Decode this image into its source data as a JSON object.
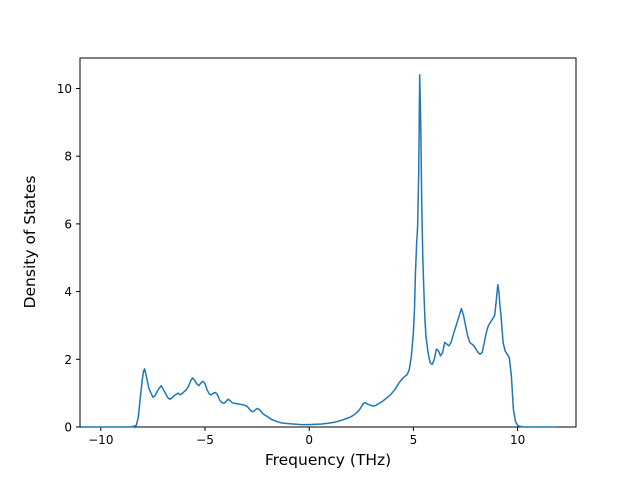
{
  "figure": {
    "background": "#ffffff"
  },
  "chart_data": {
    "type": "line",
    "title": "",
    "xlabel": "Frequency (THz)",
    "ylabel": "Density of States",
    "xlim": [
      -11.0,
      12.8
    ],
    "ylim": [
      0,
      10.9
    ],
    "xticks": [
      -10,
      -5,
      0,
      5,
      10
    ],
    "xtick_labels": [
      "−10",
      "−5",
      "0",
      "5",
      "10"
    ],
    "yticks": [
      0,
      2,
      4,
      6,
      8,
      10
    ],
    "ytick_labels": [
      "0",
      "2",
      "4",
      "6",
      "8",
      "10"
    ],
    "grid": false,
    "legend": "none",
    "line_color": "#1f77b4",
    "line_width": 1.5,
    "points": [
      [
        -10.9,
        0
      ],
      [
        -10.5,
        0
      ],
      [
        -10.0,
        0
      ],
      [
        -9.5,
        0
      ],
      [
        -9.0,
        0
      ],
      [
        -8.6,
        0
      ],
      [
        -8.4,
        0.02
      ],
      [
        -8.3,
        0.05
      ],
      [
        -8.2,
        0.3
      ],
      [
        -8.1,
        0.9
      ],
      [
        -8.0,
        1.45
      ],
      [
        -7.95,
        1.65
      ],
      [
        -7.9,
        1.72
      ],
      [
        -7.8,
        1.45
      ],
      [
        -7.7,
        1.15
      ],
      [
        -7.6,
        1.0
      ],
      [
        -7.5,
        0.88
      ],
      [
        -7.4,
        0.92
      ],
      [
        -7.3,
        1.05
      ],
      [
        -7.2,
        1.15
      ],
      [
        -7.1,
        1.22
      ],
      [
        -7.0,
        1.1
      ],
      [
        -6.9,
        1.0
      ],
      [
        -6.8,
        0.88
      ],
      [
        -6.7,
        0.82
      ],
      [
        -6.6,
        0.85
      ],
      [
        -6.5,
        0.92
      ],
      [
        -6.4,
        0.96
      ],
      [
        -6.3,
        1.0
      ],
      [
        -6.2,
        0.95
      ],
      [
        -6.1,
        0.98
      ],
      [
        -6.0,
        1.05
      ],
      [
        -5.9,
        1.1
      ],
      [
        -5.8,
        1.2
      ],
      [
        -5.7,
        1.35
      ],
      [
        -5.6,
        1.45
      ],
      [
        -5.5,
        1.38
      ],
      [
        -5.4,
        1.28
      ],
      [
        -5.3,
        1.22
      ],
      [
        -5.2,
        1.3
      ],
      [
        -5.1,
        1.35
      ],
      [
        -5.0,
        1.28
      ],
      [
        -4.9,
        1.1
      ],
      [
        -4.8,
        0.98
      ],
      [
        -4.7,
        0.95
      ],
      [
        -4.6,
        1.0
      ],
      [
        -4.5,
        1.02
      ],
      [
        -4.4,
        0.95
      ],
      [
        -4.3,
        0.8
      ],
      [
        -4.2,
        0.72
      ],
      [
        -4.1,
        0.7
      ],
      [
        -4.0,
        0.75
      ],
      [
        -3.9,
        0.82
      ],
      [
        -3.8,
        0.78
      ],
      [
        -3.7,
        0.72
      ],
      [
        -3.6,
        0.7
      ],
      [
        -3.4,
        0.68
      ],
      [
        -3.2,
        0.66
      ],
      [
        -3.0,
        0.62
      ],
      [
        -2.9,
        0.55
      ],
      [
        -2.8,
        0.48
      ],
      [
        -2.7,
        0.45
      ],
      [
        -2.6,
        0.5
      ],
      [
        -2.5,
        0.55
      ],
      [
        -2.4,
        0.52
      ],
      [
        -2.3,
        0.45
      ],
      [
        -2.2,
        0.38
      ],
      [
        -2.0,
        0.3
      ],
      [
        -1.8,
        0.22
      ],
      [
        -1.6,
        0.17
      ],
      [
        -1.4,
        0.13
      ],
      [
        -1.2,
        0.11
      ],
      [
        -1.0,
        0.1
      ],
      [
        -0.8,
        0.09
      ],
      [
        -0.6,
        0.08
      ],
      [
        -0.4,
        0.07
      ],
      [
        -0.2,
        0.07
      ],
      [
        0.0,
        0.07
      ],
      [
        0.3,
        0.08
      ],
      [
        0.6,
        0.09
      ],
      [
        0.9,
        0.11
      ],
      [
        1.2,
        0.14
      ],
      [
        1.5,
        0.19
      ],
      [
        1.8,
        0.25
      ],
      [
        2.0,
        0.3
      ],
      [
        2.2,
        0.38
      ],
      [
        2.4,
        0.5
      ],
      [
        2.5,
        0.6
      ],
      [
        2.6,
        0.7
      ],
      [
        2.7,
        0.72
      ],
      [
        2.8,
        0.68
      ],
      [
        2.9,
        0.65
      ],
      [
        3.0,
        0.63
      ],
      [
        3.1,
        0.62
      ],
      [
        3.2,
        0.64
      ],
      [
        3.3,
        0.68
      ],
      [
        3.5,
        0.75
      ],
      [
        3.7,
        0.85
      ],
      [
        3.9,
        0.95
      ],
      [
        4.1,
        1.1
      ],
      [
        4.3,
        1.3
      ],
      [
        4.5,
        1.45
      ],
      [
        4.6,
        1.5
      ],
      [
        4.7,
        1.55
      ],
      [
        4.8,
        1.7
      ],
      [
        4.9,
        2.1
      ],
      [
        5.0,
        2.8
      ],
      [
        5.05,
        3.5
      ],
      [
        5.1,
        4.6
      ],
      [
        5.15,
        5.4
      ],
      [
        5.2,
        5.9
      ],
      [
        5.25,
        7.5
      ],
      [
        5.3,
        10.4
      ],
      [
        5.35,
        9.0
      ],
      [
        5.4,
        6.5
      ],
      [
        5.45,
        5.0
      ],
      [
        5.5,
        4.0
      ],
      [
        5.55,
        3.2
      ],
      [
        5.6,
        2.7
      ],
      [
        5.7,
        2.2
      ],
      [
        5.8,
        1.9
      ],
      [
        5.9,
        1.85
      ],
      [
        6.0,
        2.0
      ],
      [
        6.1,
        2.3
      ],
      [
        6.2,
        2.25
      ],
      [
        6.3,
        2.1
      ],
      [
        6.4,
        2.2
      ],
      [
        6.5,
        2.5
      ],
      [
        6.6,
        2.45
      ],
      [
        6.7,
        2.4
      ],
      [
        6.8,
        2.5
      ],
      [
        6.9,
        2.7
      ],
      [
        7.0,
        2.9
      ],
      [
        7.1,
        3.1
      ],
      [
        7.2,
        3.3
      ],
      [
        7.3,
        3.5
      ],
      [
        7.4,
        3.3
      ],
      [
        7.5,
        3.0
      ],
      [
        7.6,
        2.7
      ],
      [
        7.7,
        2.5
      ],
      [
        7.8,
        2.45
      ],
      [
        7.9,
        2.4
      ],
      [
        8.0,
        2.3
      ],
      [
        8.1,
        2.2
      ],
      [
        8.2,
        2.15
      ],
      [
        8.3,
        2.2
      ],
      [
        8.4,
        2.5
      ],
      [
        8.5,
        2.8
      ],
      [
        8.6,
        3.0
      ],
      [
        8.7,
        3.1
      ],
      [
        8.8,
        3.2
      ],
      [
        8.9,
        3.3
      ],
      [
        8.95,
        3.6
      ],
      [
        9.0,
        3.9
      ],
      [
        9.05,
        4.2
      ],
      [
        9.1,
        4.0
      ],
      [
        9.15,
        3.6
      ],
      [
        9.2,
        3.3
      ],
      [
        9.25,
        2.9
      ],
      [
        9.3,
        2.5
      ],
      [
        9.4,
        2.25
      ],
      [
        9.5,
        2.15
      ],
      [
        9.6,
        2.05
      ],
      [
        9.7,
        1.5
      ],
      [
        9.75,
        1.0
      ],
      [
        9.8,
        0.5
      ],
      [
        9.9,
        0.15
      ],
      [
        10.0,
        0.05
      ],
      [
        10.1,
        0.02
      ],
      [
        10.3,
        0
      ],
      [
        10.8,
        0
      ],
      [
        11.3,
        0
      ],
      [
        11.8,
        0
      ]
    ]
  }
}
